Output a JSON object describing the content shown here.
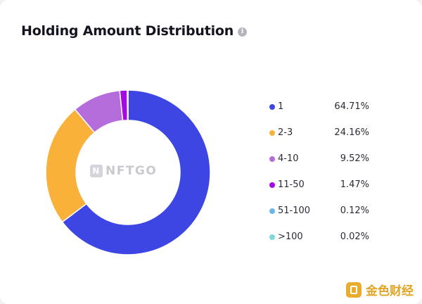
{
  "card": {
    "title": "Holding Amount Distribution",
    "info_glyph": "i"
  },
  "watermark": {
    "text": "NFTGO",
    "mark": "N"
  },
  "corner_logo": {
    "text": "金色财经",
    "icon": "jinse-logo-icon"
  },
  "colors": {
    "series": [
      "#3d46e3",
      "#f9b13a",
      "#b46ddb",
      "#a609e3",
      "#6ab7e8",
      "#7fd9d6"
    ]
  },
  "chart_data": {
    "type": "pie",
    "donut": true,
    "title": "Holding Amount Distribution",
    "categories": [
      "1",
      "2-3",
      "4-10",
      "11-50",
      "51-100",
      ">100"
    ],
    "values": [
      64.71,
      24.16,
      9.52,
      1.47,
      0.12,
      0.02
    ],
    "labels": [
      "64.71%",
      "24.16%",
      "9.52%",
      "1.47%",
      "0.12%",
      "0.02%"
    ],
    "legend_position": "right"
  }
}
